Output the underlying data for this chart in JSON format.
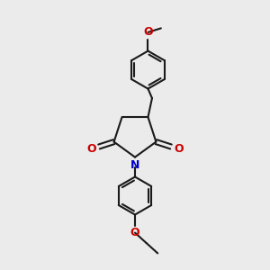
{
  "bg_color": "#ebebeb",
  "bond_color": "#1a1a1a",
  "nitrogen_color": "#0000cc",
  "oxygen_color": "#cc0000",
  "bond_width": 1.5,
  "figsize": [
    3.0,
    3.0
  ],
  "dpi": 100,
  "xlim": [
    0,
    10
  ],
  "ylim": [
    0,
    10
  ]
}
